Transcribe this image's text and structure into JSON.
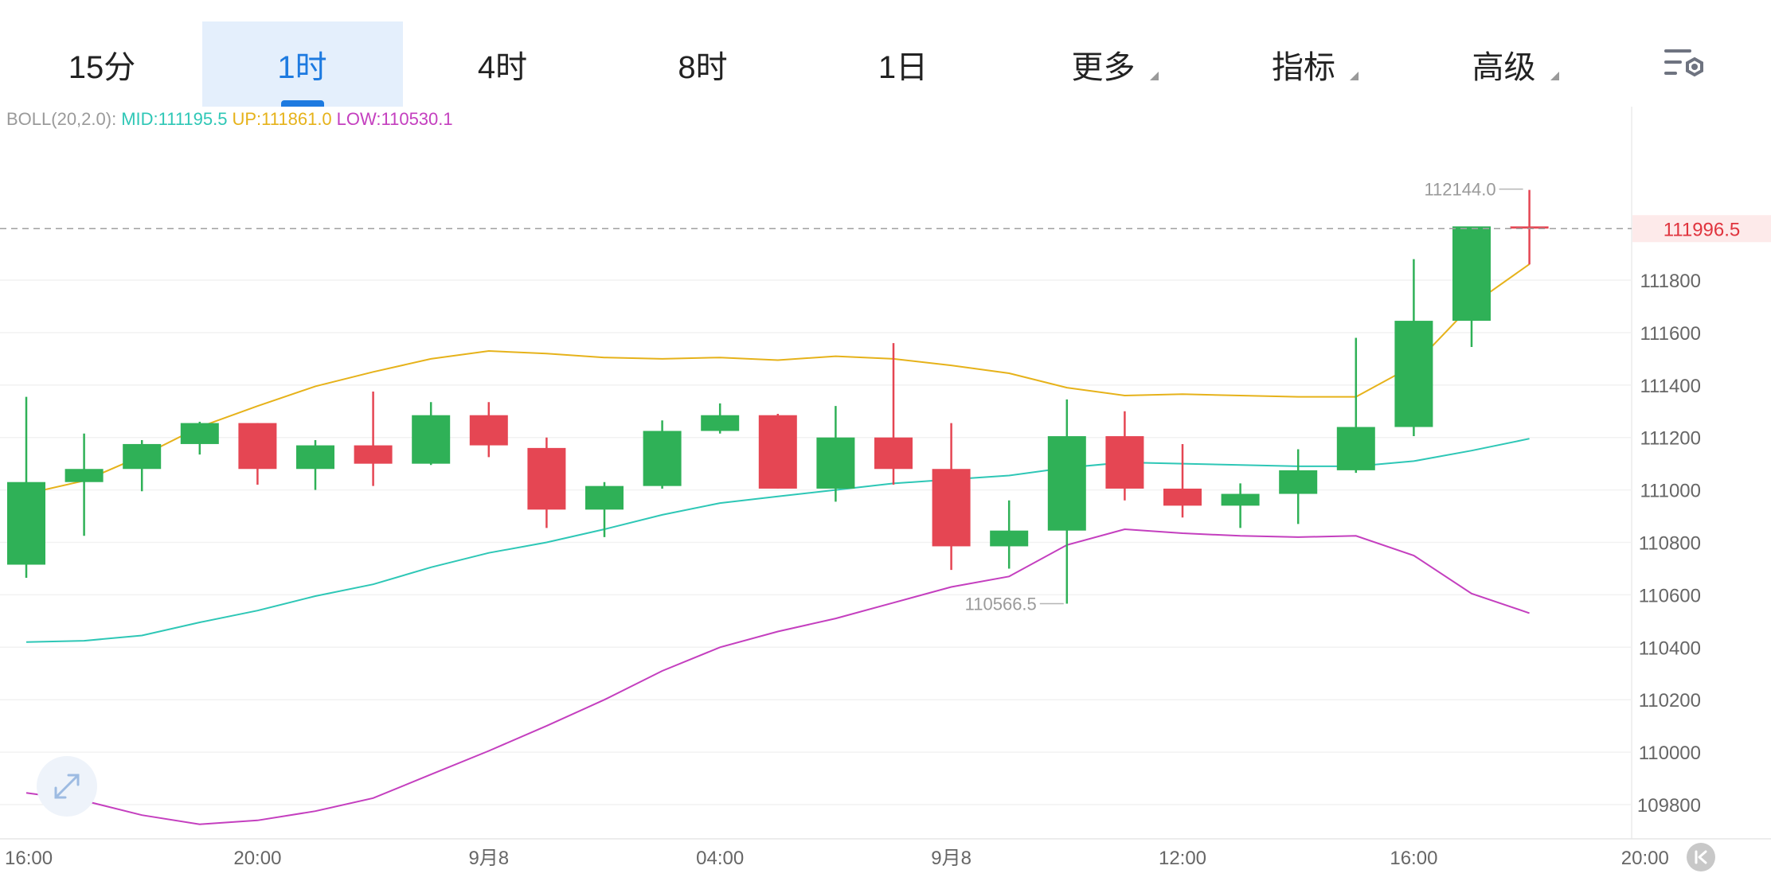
{
  "tabs": [
    {
      "label": "15分",
      "active": false,
      "dropdown": false
    },
    {
      "label": "1时",
      "active": true,
      "dropdown": false
    },
    {
      "label": "4时",
      "active": false,
      "dropdown": false
    },
    {
      "label": "8时",
      "active": false,
      "dropdown": false
    },
    {
      "label": "1日",
      "active": false,
      "dropdown": false
    },
    {
      "label": "更多",
      "active": false,
      "dropdown": true
    },
    {
      "label": "指标",
      "active": false,
      "dropdown": true
    },
    {
      "label": "高级",
      "active": false,
      "dropdown": true
    }
  ],
  "settings_icon": "chart-settings-icon",
  "legend": {
    "name": "BOLL(20,2.0):",
    "mid": "MID:111195.5",
    "up": "UP:111861.0",
    "low": "LOW:110530.1"
  },
  "colors": {
    "up_candle": "#2fb157",
    "down_candle": "#e54653",
    "mid": "#2ec7b6",
    "upper": "#e6b21a",
    "lower": "#c43fbf",
    "accent": "#1d7ae0",
    "price_tag_bg": "#fdeaea",
    "price_tag_text": "#e0343e"
  },
  "chart_data": {
    "type": "candlestick",
    "indicator": "BOLL(20,2.0)",
    "ylim": [
      109700,
      112350
    ],
    "y_ticks": [
      111800,
      111600,
      111400,
      111200,
      111000,
      110800,
      110600,
      110400,
      110200,
      110000,
      109800
    ],
    "x_tick_labels": [
      "16:00",
      "20:00",
      "9月8",
      "04:00",
      "9月8",
      "12:00",
      "16:00",
      "20:00"
    ],
    "x_tick_slots": [
      0,
      4,
      8,
      12,
      16,
      20,
      24,
      28
    ],
    "current_price": "111996.5",
    "high_label": {
      "text": "112144.0",
      "value": 112144.0,
      "slot": 26
    },
    "low_label": {
      "text": "110566.5",
      "value": 110566.5,
      "slot": 18
    },
    "candles": [
      {
        "o": 110715,
        "h": 111355,
        "l": 110665,
        "c": 111030
      },
      {
        "o": 111030,
        "h": 111215,
        "l": 110825,
        "c": 111080
      },
      {
        "o": 111080,
        "h": 111190,
        "l": 110995,
        "c": 111175
      },
      {
        "o": 111175,
        "h": 111260,
        "l": 111135,
        "c": 111255
      },
      {
        "o": 111255,
        "h": 111255,
        "l": 111020,
        "c": 111080
      },
      {
        "o": 111080,
        "h": 111190,
        "l": 111000,
        "c": 111170
      },
      {
        "o": 111170,
        "h": 111375,
        "l": 111015,
        "c": 111100
      },
      {
        "o": 111100,
        "h": 111335,
        "l": 111095,
        "c": 111285
      },
      {
        "o": 111285,
        "h": 111335,
        "l": 111125,
        "c": 111170
      },
      {
        "o": 111160,
        "h": 111200,
        "l": 110855,
        "c": 110925
      },
      {
        "o": 110925,
        "h": 111030,
        "l": 110820,
        "c": 111015
      },
      {
        "o": 111015,
        "h": 111265,
        "l": 111005,
        "c": 111225
      },
      {
        "o": 111225,
        "h": 111330,
        "l": 111215,
        "c": 111285
      },
      {
        "o": 111285,
        "h": 111290,
        "l": 111005,
        "c": 111005
      },
      {
        "o": 111005,
        "h": 111320,
        "l": 110955,
        "c": 111200
      },
      {
        "o": 111200,
        "h": 111560,
        "l": 111020,
        "c": 111080
      },
      {
        "o": 111080,
        "h": 111255,
        "l": 110695,
        "c": 110785
      },
      {
        "o": 110785,
        "h": 110960,
        "l": 110700,
        "c": 110845
      },
      {
        "o": 110845,
        "h": 111345,
        "l": 110566.5,
        "c": 111205
      },
      {
        "o": 111205,
        "h": 111300,
        "l": 110960,
        "c": 111005
      },
      {
        "o": 111005,
        "h": 111175,
        "l": 110895,
        "c": 110940
      },
      {
        "o": 110940,
        "h": 111025,
        "l": 110855,
        "c": 110985
      },
      {
        "o": 110985,
        "h": 111155,
        "l": 110870,
        "c": 111075
      },
      {
        "o": 111075,
        "h": 111580,
        "l": 111065,
        "c": 111240
      },
      {
        "o": 111240,
        "h": 111880,
        "l": 111205,
        "c": 111645
      },
      {
        "o": 111645,
        "h": 112005,
        "l": 111545,
        "c": 112005
      },
      {
        "o": 112005,
        "h": 112144,
        "l": 111860,
        "c": 111996.5
      }
    ],
    "boll_up": [
      110985,
      111035,
      111130,
      111240,
      111320,
      111395,
      111450,
      111500,
      111530,
      111520,
      111505,
      111500,
      111505,
      111495,
      111510,
      111500,
      111475,
      111445,
      111390,
      111360,
      111365,
      111360,
      111355,
      111355,
      111475,
      111705,
      111861
    ],
    "boll_mid": [
      110420,
      110425,
      110445,
      110495,
      110540,
      110595,
      110640,
      110705,
      110760,
      110800,
      110850,
      110905,
      110950,
      110975,
      111000,
      111025,
      111040,
      111055,
      111085,
      111105,
      111100,
      111095,
      111090,
      111090,
      111110,
      111150,
      111195.5
    ],
    "boll_low": [
      109845,
      109815,
      109760,
      109725,
      109740,
      109775,
      109825,
      109915,
      110005,
      110100,
      110200,
      110310,
      110400,
      110460,
      110510,
      110570,
      110630,
      110670,
      110790,
      110850,
      110835,
      110825,
      110820,
      110825,
      110750,
      110605,
      110530.1
    ]
  }
}
